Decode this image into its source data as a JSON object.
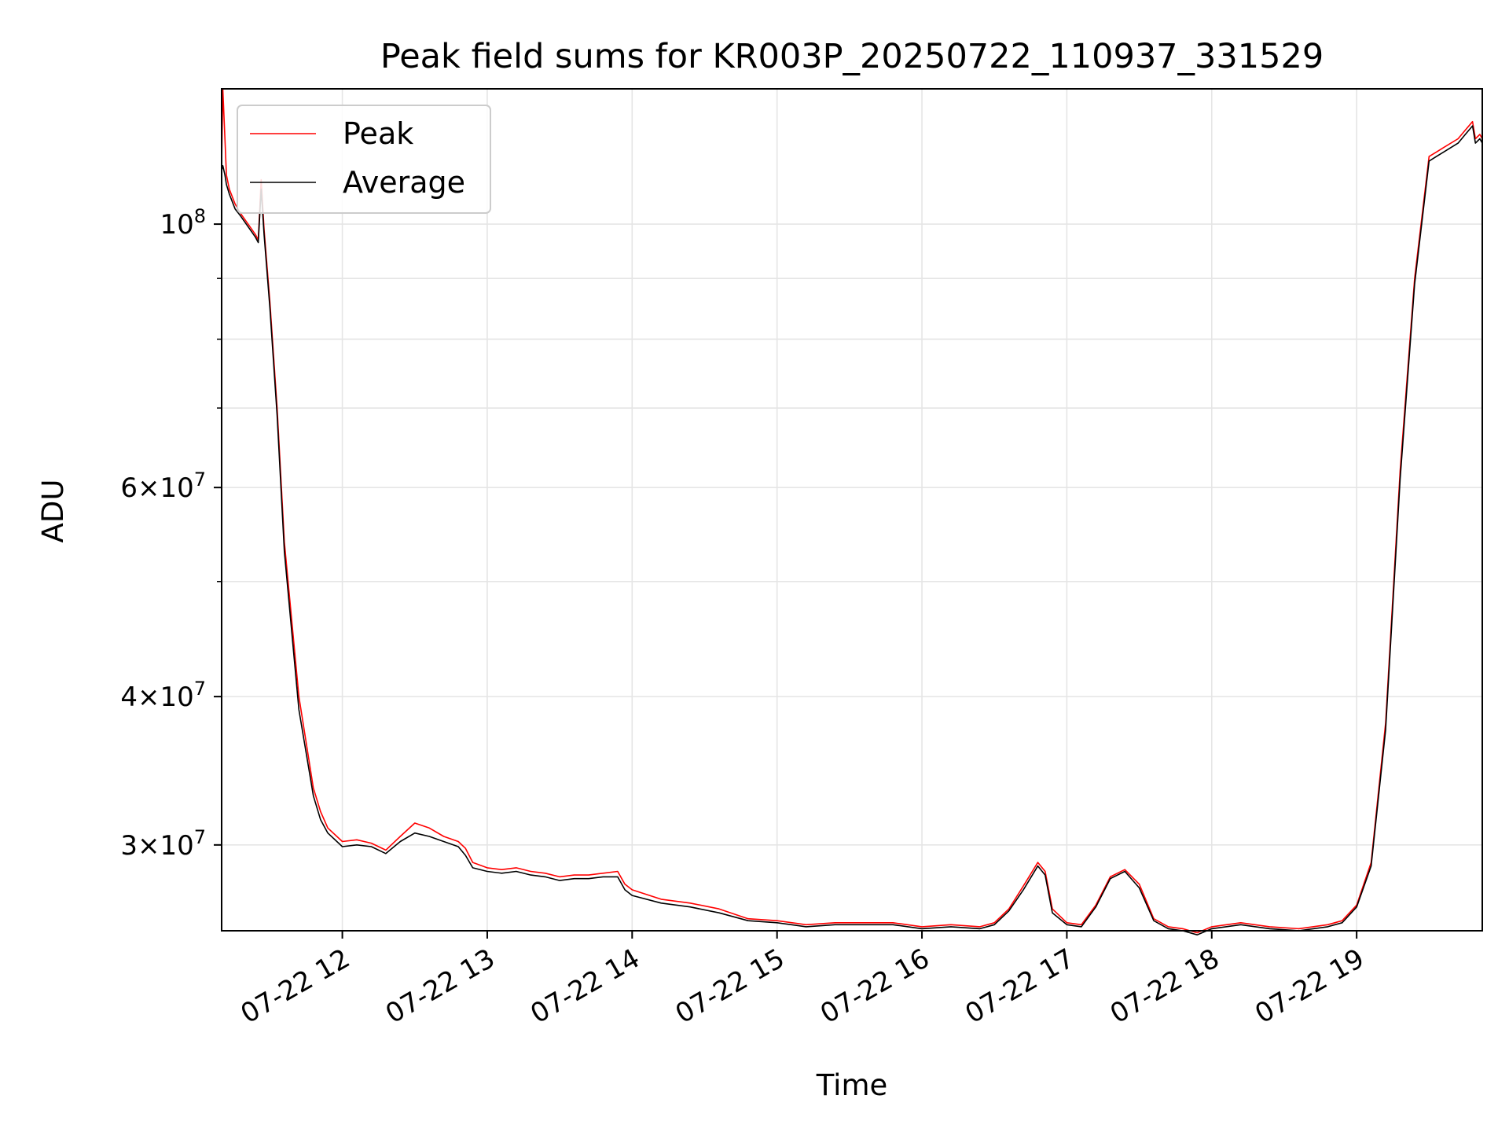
{
  "chart_data": {
    "type": "line",
    "title": "Peak field sums for KR003P_20250722_110937_331529",
    "xlabel": "Time",
    "ylabel": "ADU",
    "yscale": "log",
    "ylim": [
      25400000,
      130000000
    ],
    "xlim_hours": [
      11.167,
      19.867
    ],
    "grid": true,
    "legend": "upper-left",
    "x_ticks": [
      {
        "value": 12,
        "label": "07-22 12"
      },
      {
        "value": 13,
        "label": "07-22 13"
      },
      {
        "value": 14,
        "label": "07-22 14"
      },
      {
        "value": 15,
        "label": "07-22 15"
      },
      {
        "value": 16,
        "label": "07-22 16"
      },
      {
        "value": 17,
        "label": "07-22 17"
      },
      {
        "value": 18,
        "label": "07-22 18"
      },
      {
        "value": 19,
        "label": "07-22 19"
      }
    ],
    "y_ticks": [
      {
        "value": 30000000,
        "mant": "3",
        "exp": "7"
      },
      {
        "value": 40000000,
        "mant": "4",
        "exp": "7"
      },
      {
        "value": 60000000,
        "mant": "6",
        "exp": "7"
      },
      {
        "value": 100000000,
        "mant": "",
        "exp": "8"
      }
    ],
    "y_minor": [
      50000000,
      70000000,
      80000000,
      90000000
    ],
    "series": [
      {
        "name": "Peak",
        "color": "#ff0000",
        "x": [
          11.167,
          11.175,
          11.19,
          11.2,
          11.22,
          11.26,
          11.3,
          11.35,
          11.4,
          11.42,
          11.44,
          11.46,
          11.5,
          11.55,
          11.6,
          11.7,
          11.8,
          11.85,
          11.9,
          12.0,
          12.1,
          12.2,
          12.3,
          12.4,
          12.5,
          12.6,
          12.7,
          12.8,
          12.85,
          12.9,
          13.0,
          13.1,
          13.2,
          13.3,
          13.4,
          13.5,
          13.6,
          13.7,
          13.8,
          13.9,
          13.95,
          14.0,
          14.2,
          14.4,
          14.6,
          14.8,
          15.0,
          15.2,
          15.4,
          15.6,
          15.8,
          16.0,
          16.2,
          16.4,
          16.5,
          16.6,
          16.7,
          16.8,
          16.85,
          16.9,
          17.0,
          17.1,
          17.2,
          17.3,
          17.4,
          17.5,
          17.6,
          17.7,
          17.8,
          17.9,
          18.0,
          18.2,
          18.4,
          18.6,
          18.8,
          18.9,
          19.0,
          19.1,
          19.2,
          19.3,
          19.4,
          19.5,
          19.55,
          19.6,
          19.7,
          19.75,
          19.8,
          19.82,
          19.85,
          19.867
        ],
        "y": [
          112000000,
          130000000,
          118000000,
          110000000,
          107000000,
          104000000,
          102000000,
          100000000,
          98000000,
          97000000,
          109000000,
          99000000,
          86000000,
          70000000,
          54000000,
          40000000,
          33500000,
          32000000,
          31000000,
          30200000,
          30300000,
          30100000,
          29700000,
          30500000,
          31300000,
          31000000,
          30500000,
          30200000,
          29800000,
          29000000,
          28700000,
          28600000,
          28700000,
          28500000,
          28400000,
          28200000,
          28300000,
          28300000,
          28400000,
          28500000,
          27800000,
          27500000,
          27000000,
          26800000,
          26500000,
          26000000,
          25900000,
          25700000,
          25800000,
          25800000,
          25800000,
          25600000,
          25700000,
          25600000,
          25800000,
          26500000,
          27700000,
          29000000,
          28500000,
          26500000,
          25800000,
          25700000,
          26700000,
          28200000,
          28600000,
          27800000,
          26000000,
          25600000,
          25500000,
          25300000,
          25600000,
          25800000,
          25600000,
          25500000,
          25700000,
          25900000,
          26700000,
          29000000,
          38000000,
          62000000,
          90000000,
          114000000,
          115000000,
          116000000,
          118000000,
          120000000,
          122000000,
          118000000,
          119000000,
          118000000
        ]
      },
      {
        "name": "Average",
        "color": "#000000",
        "x": [
          11.167,
          11.175,
          11.19,
          11.2,
          11.22,
          11.26,
          11.3,
          11.35,
          11.4,
          11.42,
          11.44,
          11.46,
          11.5,
          11.55,
          11.6,
          11.7,
          11.8,
          11.85,
          11.9,
          12.0,
          12.1,
          12.2,
          12.3,
          12.4,
          12.5,
          12.6,
          12.7,
          12.8,
          12.85,
          12.9,
          13.0,
          13.1,
          13.2,
          13.3,
          13.4,
          13.5,
          13.6,
          13.7,
          13.8,
          13.9,
          13.95,
          14.0,
          14.2,
          14.4,
          14.6,
          14.8,
          15.0,
          15.2,
          15.4,
          15.6,
          15.8,
          16.0,
          16.2,
          16.4,
          16.5,
          16.6,
          16.7,
          16.8,
          16.85,
          16.9,
          17.0,
          17.1,
          17.2,
          17.3,
          17.4,
          17.5,
          17.6,
          17.7,
          17.8,
          17.9,
          18.0,
          18.2,
          18.4,
          18.6,
          18.8,
          18.9,
          19.0,
          19.1,
          19.2,
          19.3,
          19.4,
          19.5,
          19.55,
          19.6,
          19.7,
          19.75,
          19.8,
          19.82,
          19.85,
          19.867
        ],
        "y": [
          111000000,
          112000000,
          110000000,
          108000000,
          106000000,
          103000000,
          101500000,
          99500000,
          97500000,
          96500000,
          107000000,
          98000000,
          85000000,
          69000000,
          53000000,
          39000000,
          33000000,
          31500000,
          30700000,
          29900000,
          30000000,
          29900000,
          29500000,
          30200000,
          30700000,
          30500000,
          30200000,
          29900000,
          29400000,
          28700000,
          28500000,
          28400000,
          28500000,
          28300000,
          28200000,
          28000000,
          28100000,
          28100000,
          28200000,
          28200000,
          27500000,
          27200000,
          26800000,
          26600000,
          26300000,
          25900000,
          25800000,
          25600000,
          25700000,
          25700000,
          25700000,
          25500000,
          25600000,
          25500000,
          25700000,
          26400000,
          27500000,
          28800000,
          28300000,
          26300000,
          25700000,
          25600000,
          26600000,
          28100000,
          28500000,
          27600000,
          25900000,
          25500000,
          25400000,
          25200000,
          25500000,
          25700000,
          25500000,
          25400000,
          25600000,
          25800000,
          26600000,
          28800000,
          37500000,
          61000000,
          89000000,
          113000000,
          114000000,
          115000000,
          117000000,
          119000000,
          121000000,
          117000000,
          118000000,
          117000000
        ]
      }
    ]
  }
}
